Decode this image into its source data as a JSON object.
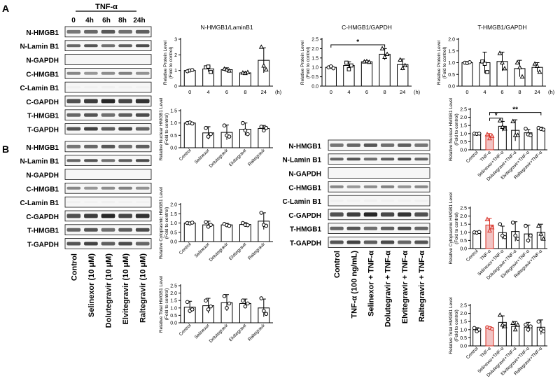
{
  "figure": {
    "panel_a_label": "A",
    "panel_b_label": "B",
    "treatment_label": "TNF-α",
    "timepoints": [
      "0",
      "4h",
      "6h",
      "8h",
      "24h"
    ],
    "blot_labels": [
      "N-HMGB1",
      "N-Lamin B1",
      "N-GAPDH",
      "C-HMGB1",
      "C-Lamin B1",
      "C-GAPDH",
      "T-HMGB1",
      "T-GAPDH"
    ],
    "blot_b1_lanes": [
      "Control",
      "Selinexor (10 μM)",
      "Dolutegravir (10 μM)",
      "Elvitegravir (10 μM)",
      "Raltegravir (10 μM)"
    ],
    "blot_b2_lanes": [
      "Control",
      "TNF-α (100 ng/mL)",
      "Selinexor + TNF-α",
      "Dolutegravir + TNF-α",
      "Elvitegravir + TNF-α",
      "Raltegravir + TNF-α"
    ]
  },
  "chart_data": [
    {
      "type": "bar",
      "title": "N-HMGB1/LaminB1",
      "ylabel": "Relative Protein Level",
      "ylabel2": "(Fold to control)",
      "xunit": "(h)",
      "categories": [
        "0",
        "4",
        "6",
        "8",
        "24"
      ],
      "values": [
        1.0,
        1.1,
        1.05,
        0.85,
        1.65
      ],
      "errors": [
        0.08,
        0.18,
        0.12,
        0.05,
        0.8
      ],
      "points": [
        [
          0.95,
          1.0,
          1.03
        ],
        [
          1.2,
          1.25,
          0.9
        ],
        [
          1.1,
          1.05,
          0.98
        ],
        [
          0.85,
          0.82,
          0.88
        ],
        [
          2.5,
          1.3,
          1.05
        ]
      ],
      "ylim": [
        0,
        3
      ],
      "yticks": [
        0,
        1,
        2,
        3
      ],
      "tick_decimals": 0,
      "fills": [
        "#ffffff",
        "#ffffff",
        "#ffffff",
        "#ffffff",
        "#ffffff"
      ],
      "colors": [
        "#000000",
        "#000000",
        "#000000",
        "#000000",
        "#000000"
      ],
      "markers": [
        "circle",
        "square",
        "triangle",
        "triangle",
        "triangle"
      ],
      "sig": []
    },
    {
      "type": "bar",
      "title": "C-HMGB1/GAPDH",
      "ylabel": "Relative Protein Level",
      "ylabel2": "(Fold to control)",
      "xunit": "(h)",
      "categories": [
        "0",
        "4",
        "6",
        "8",
        "24"
      ],
      "values": [
        1.0,
        1.1,
        1.3,
        1.7,
        1.15
      ],
      "errors": [
        0.08,
        0.2,
        0.05,
        0.3,
        0.3
      ],
      "points": [
        [
          1.0,
          1.05,
          0.95
        ],
        [
          1.25,
          0.9,
          1.1
        ],
        [
          1.3,
          1.32,
          1.28
        ],
        [
          2.0,
          1.55,
          1.7
        ],
        [
          1.4,
          0.95,
          1.1
        ]
      ],
      "ylim": [
        0,
        2.5
      ],
      "yticks": [
        0,
        0.5,
        1,
        1.5,
        2,
        2.5
      ],
      "tick_decimals": 1,
      "fills": [
        "#ffffff",
        "#ffffff",
        "#ffffff",
        "#ffffff",
        "#ffffff"
      ],
      "colors": [
        "#000000",
        "#000000",
        "#000000",
        "#000000",
        "#000000"
      ],
      "markers": [
        "circle",
        "square",
        "triangle",
        "triangle",
        "triangle"
      ],
      "sig": [
        {
          "from": 0,
          "to": 3,
          "label": "*",
          "y": 2.2
        }
      ]
    },
    {
      "type": "bar",
      "title": "T-HMGB1/GAPDH",
      "ylabel": "Relative Protein Level",
      "ylabel2": "(Fold to control)",
      "xunit": "(h)",
      "categories": [
        "0",
        "4",
        "6",
        "8",
        "24"
      ],
      "values": [
        1.0,
        1.0,
        1.05,
        0.75,
        0.8
      ],
      "errors": [
        0.05,
        0.45,
        0.4,
        0.35,
        0.2
      ],
      "points": [
        [
          1.0,
          0.98,
          1.02
        ],
        [
          1.05,
          0.95,
          0.6
        ],
        [
          1.4,
          1.0,
          0.75
        ],
        [
          1.0,
          0.8,
          0.4
        ],
        [
          0.95,
          0.85,
          0.6
        ]
      ],
      "ylim": [
        0,
        2
      ],
      "yticks": [
        0,
        0.5,
        1,
        1.5,
        2
      ],
      "tick_decimals": 1,
      "fills": [
        "#ffffff",
        "#ffffff",
        "#ffffff",
        "#ffffff",
        "#ffffff"
      ],
      "colors": [
        "#000000",
        "#000000",
        "#000000",
        "#000000",
        "#000000"
      ],
      "markers": [
        "circle",
        "square",
        "triangle",
        "triangle",
        "triangle"
      ],
      "sig": []
    },
    {
      "type": "bar",
      "title": "",
      "ylabel": "Relative Nuclear HMGB1 Level",
      "ylabel2": "(Fold to control)",
      "xunit": "",
      "categories": [
        "Control",
        "Selinexor",
        "Dolutegravir",
        "Elvitegravir",
        "Raltegravir"
      ],
      "values": [
        1.0,
        0.6,
        0.62,
        0.75,
        0.78
      ],
      "errors": [
        0.05,
        0.25,
        0.3,
        0.25,
        0.12
      ],
      "points": [
        [
          1.0,
          1.02,
          0.98
        ],
        [
          0.8,
          0.45,
          0.55
        ],
        [
          0.9,
          0.5,
          0.45
        ],
        [
          1.0,
          0.7,
          0.55
        ],
        [
          0.85,
          0.7,
          0.8
        ]
      ],
      "ylim": [
        0,
        1.5
      ],
      "yticks": [
        0,
        0.5,
        1,
        1.5
      ],
      "tick_decimals": 1,
      "fills": [
        "#ffffff",
        "#ffffff",
        "#ffffff",
        "#ffffff",
        "#ffffff"
      ],
      "colors": [
        "#000000",
        "#000000",
        "#000000",
        "#000000",
        "#000000"
      ],
      "markers": [
        "circle",
        "circle",
        "circle",
        "circle",
        "circle"
      ],
      "sig": []
    },
    {
      "type": "bar",
      "title": "",
      "ylabel": "Relative Cytoplasmic HMGB1 Level",
      "ylabel2": "(Fold to control)",
      "xunit": "",
      "categories": [
        "Control",
        "Selinexor",
        "Dolutegravir",
        "Elvitegravir",
        "Raltegravir"
      ],
      "values": [
        1.0,
        0.9,
        0.9,
        0.92,
        1.1
      ],
      "errors": [
        0.05,
        0.2,
        0.08,
        0.1,
        0.45
      ],
      "points": [
        [
          1.0,
          0.98,
          1.02
        ],
        [
          1.05,
          0.8,
          0.9
        ],
        [
          0.95,
          0.88,
          0.85
        ],
        [
          1.0,
          0.9,
          0.88
        ],
        [
          1.55,
          0.9,
          0.85
        ]
      ],
      "ylim": [
        0,
        2
      ],
      "yticks": [
        0,
        0.5,
        1,
        1.5,
        2
      ],
      "tick_decimals": 1,
      "fills": [
        "#ffffff",
        "#ffffff",
        "#ffffff",
        "#ffffff",
        "#ffffff"
      ],
      "colors": [
        "#000000",
        "#000000",
        "#000000",
        "#000000",
        "#000000"
      ],
      "markers": [
        "circle",
        "circle",
        "circle",
        "circle",
        "circle"
      ],
      "sig": []
    },
    {
      "type": "bar",
      "title": "",
      "ylabel": "Relative Total HMGB1 Level",
      "ylabel2": "(Fold to control)",
      "xunit": "",
      "categories": [
        "Control",
        "Selinexor",
        "Dolutegravir",
        "Elvitegravir",
        "Raltegravir"
      ],
      "values": [
        1.05,
        1.15,
        1.35,
        1.3,
        1.0
      ],
      "errors": [
        0.4,
        0.5,
        0.55,
        0.3,
        0.6
      ],
      "points": [
        [
          1.4,
          0.8,
          0.9
        ],
        [
          1.5,
          0.9,
          1.1
        ],
        [
          1.8,
          1.0,
          1.3
        ],
        [
          1.5,
          1.1,
          1.3
        ],
        [
          1.65,
          0.8,
          0.6
        ]
      ],
      "ylim": [
        0,
        2.5
      ],
      "yticks": [
        0,
        0.5,
        1,
        1.5,
        2,
        2.5
      ],
      "tick_decimals": 1,
      "fills": [
        "#ffffff",
        "#ffffff",
        "#ffffff",
        "#ffffff",
        "#ffffff"
      ],
      "colors": [
        "#000000",
        "#000000",
        "#000000",
        "#000000",
        "#000000"
      ],
      "markers": [
        "circle",
        "circle",
        "circle",
        "circle",
        "circle"
      ],
      "sig": []
    },
    {
      "type": "bar",
      "title": "",
      "ylabel": "Relative Nuclear HMGB1 Level",
      "ylabel2": "(Fold to control)",
      "xunit": "",
      "categories": [
        "Control",
        "TNF-α",
        "Selinexor+TNF-α",
        "Dolutegravir+TNF-α",
        "Elvitegravir+TNF-α",
        "Raltegravir+TNF-α"
      ],
      "values": [
        1.0,
        0.85,
        1.45,
        1.2,
        1.05,
        1.3
      ],
      "errors": [
        0.03,
        0.15,
        0.3,
        0.65,
        0.2,
        0.1
      ],
      "points": [
        [
          1.0,
          0.98,
          1.0
        ],
        [
          0.95,
          0.7,
          0.85
        ],
        [
          1.8,
          1.4,
          1.3
        ],
        [
          1.75,
          0.9,
          0.9
        ],
        [
          1.3,
          0.95,
          0.9
        ],
        [
          1.35,
          1.28,
          1.25
        ]
      ],
      "ylim": [
        0,
        2.5
      ],
      "yticks": [
        0,
        0.5,
        1,
        1.5,
        2,
        2.5
      ],
      "tick_decimals": 1,
      "fills": [
        "#ffffff",
        "#f2c4c4",
        "#ffffff",
        "#ffffff",
        "#ffffff",
        "#ffffff"
      ],
      "colors": [
        "#000000",
        "#d93025",
        "#000000",
        "#000000",
        "#000000",
        "#000000"
      ],
      "markers": [
        "circle",
        "triangle",
        "triangle",
        "triangle",
        "circle",
        "circle"
      ],
      "sig": [
        {
          "from": 1,
          "to": 2,
          "label": "*",
          "y": 1.95
        },
        {
          "from": 1,
          "to": 5,
          "label": "**",
          "y": 2.3
        }
      ]
    },
    {
      "type": "bar",
      "title": "",
      "ylabel": "Relative Cytoplasmic HMGB1 Level",
      "ylabel2": "(Fold to control)",
      "xunit": "",
      "categories": [
        "Control",
        "TNF-α",
        "Selinexor+TNF-α",
        "Dolutegravir+TNF-α",
        "Elvitegravir+TNF-α",
        "Raltegravir+TNF-α"
      ],
      "values": [
        1.0,
        1.45,
        0.98,
        1.05,
        0.9,
        1.0
      ],
      "errors": [
        0.05,
        0.4,
        0.4,
        0.6,
        0.55,
        0.5
      ],
      "points": [
        [
          1.0,
          0.98,
          1.02
        ],
        [
          1.8,
          1.1,
          1.3
        ],
        [
          1.5,
          0.8,
          0.7
        ],
        [
          1.6,
          0.8,
          0.6
        ],
        [
          1.4,
          0.5,
          0.8
        ],
        [
          1.4,
          0.9,
          0.6
        ]
      ],
      "ylim": [
        0,
        2.5
      ],
      "yticks": [
        0,
        0.5,
        1,
        1.5,
        2,
        2.5
      ],
      "tick_decimals": 1,
      "fills": [
        "#ffffff",
        "#f2c4c4",
        "#ffffff",
        "#ffffff",
        "#ffffff",
        "#ffffff"
      ],
      "colors": [
        "#000000",
        "#d93025",
        "#000000",
        "#000000",
        "#000000",
        "#000000"
      ],
      "markers": [
        "circle",
        "triangle",
        "circle",
        "circle",
        "circle",
        "triangle"
      ],
      "sig": []
    },
    {
      "type": "bar",
      "title": "",
      "ylabel": "Relative Total HMGB1 Level",
      "ylabel2": "(Fold to control)",
      "xunit": "",
      "categories": [
        "Control",
        "TNF-α",
        "Selinexor+TNF-α",
        "Dolutegravir+TNF-α",
        "Elvitegravir+TNF-α",
        "Raltegravir+TNF-α"
      ],
      "values": [
        1.0,
        1.1,
        1.45,
        1.2,
        1.15,
        1.15
      ],
      "errors": [
        0.12,
        0.08,
        0.4,
        0.3,
        0.3,
        0.45
      ],
      "points": [
        [
          1.1,
          0.9,
          1.0
        ],
        [
          1.15,
          1.1,
          1.05
        ],
        [
          1.9,
          1.3,
          1.2
        ],
        [
          1.4,
          1.0,
          1.3
        ],
        [
          1.3,
          1.0,
          1.2
        ],
        [
          1.5,
          1.0,
          0.9
        ]
      ],
      "ylim": [
        0,
        2.5
      ],
      "yticks": [
        0,
        0.5,
        1,
        1.5,
        2,
        2.5
      ],
      "tick_decimals": 1,
      "fills": [
        "#ffffff",
        "#f2c4c4",
        "#ffffff",
        "#ffffff",
        "#ffffff",
        "#ffffff"
      ],
      "colors": [
        "#000000",
        "#d93025",
        "#000000",
        "#000000",
        "#000000",
        "#000000"
      ],
      "markers": [
        "circle",
        "circle",
        "triangle",
        "triangle",
        "circle",
        "circle"
      ],
      "sig": []
    }
  ]
}
